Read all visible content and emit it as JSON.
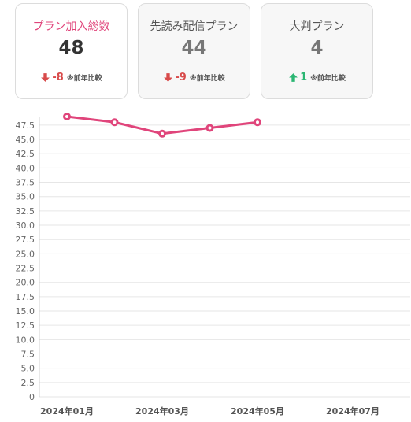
{
  "cards": [
    {
      "title": "プラン加入総数",
      "value": "48",
      "delta": "-8",
      "direction": "down",
      "note": "※前年比較",
      "title_color": "#e0457b",
      "value_color": "#333333",
      "delta_color": "#d84a4a"
    },
    {
      "title": "先読み配信プラン",
      "value": "44",
      "delta": "-9",
      "direction": "down",
      "note": "※前年比較",
      "title_color": "#555555",
      "value_color": "#777777",
      "delta_color": "#d84a4a"
    },
    {
      "title": "大判プラン",
      "value": "4",
      "delta": "1",
      "direction": "up",
      "note": "※前年比較",
      "title_color": "#555555",
      "value_color": "#777777",
      "delta_color": "#2bb673"
    }
  ],
  "chart_data": {
    "type": "line",
    "title": "",
    "xlabel": "",
    "ylabel": "",
    "x": [
      "2024年01月",
      "2024年02月",
      "2024年03月",
      "2024年04月",
      "2024年05月"
    ],
    "x_tick_labels": [
      "2024年01月",
      "2024年03月",
      "2024年05月",
      "2024年07月"
    ],
    "x_range": [
      "2024年01月",
      "2024年08月"
    ],
    "y_ticks": [
      "0",
      "2.5",
      "5.0",
      "7.5",
      "10.0",
      "12.5",
      "15.0",
      "17.5",
      "20.0",
      "22.5",
      "25.0",
      "27.5",
      "30.0",
      "32.5",
      "35.0",
      "37.5",
      "40.0",
      "42.5",
      "45.0",
      "47.5"
    ],
    "ylim": [
      0,
      49
    ],
    "grid": true,
    "series": [
      {
        "values": [
          49,
          48,
          46,
          47,
          48
        ],
        "color": "#e0457b"
      }
    ]
  }
}
